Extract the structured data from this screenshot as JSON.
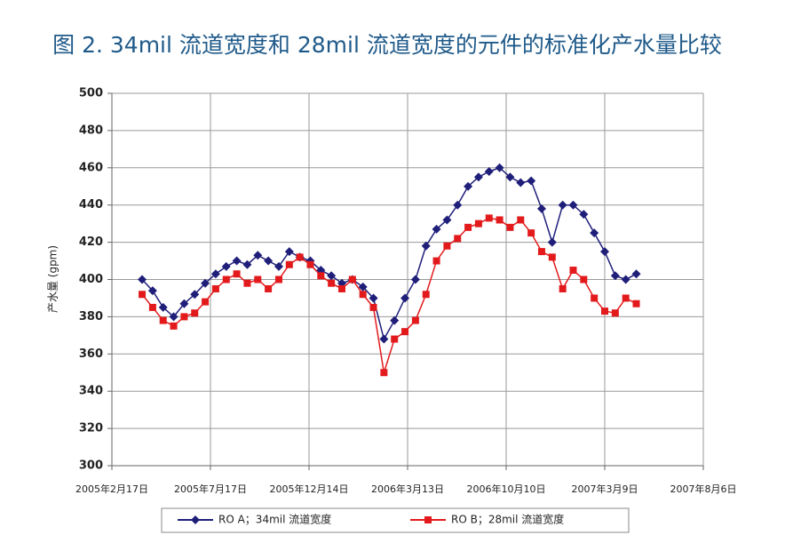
{
  "chart_data": {
    "type": "line",
    "title": "图 2. 34mil 流道宽度和 28mil 流道宽度的元件的标准化产水量比较",
    "y_label": "产水量 (gpm)",
    "x": [
      46,
      62,
      78,
      94,
      110,
      126,
      142,
      158,
      174,
      190,
      206,
      222,
      238,
      254,
      270,
      286,
      302,
      318,
      334,
      350,
      366,
      382,
      398,
      414,
      430,
      446,
      462,
      478,
      494,
      510,
      526,
      542,
      558,
      574,
      590,
      606,
      622,
      638,
      654,
      670,
      686,
      702,
      718,
      734,
      750,
      766,
      782,
      798
    ],
    "series": [
      {
        "name": "RO A；34mil 流道宽度",
        "color": "#1f1f7a",
        "marker": "diamond",
        "values": [
          400,
          394,
          385,
          380,
          387,
          392,
          398,
          403,
          407,
          410,
          408,
          413,
          410,
          407,
          415,
          412,
          410,
          405,
          402,
          398,
          400,
          396,
          390,
          368,
          378,
          390,
          400,
          418,
          427,
          432,
          440,
          450,
          455,
          458,
          460,
          455,
          452,
          453,
          438,
          420,
          440,
          440,
          435,
          425,
          415,
          402,
          400,
          403
        ]
      },
      {
        "name": "RO B；28mil 流道宽度",
        "color": "#e31a1c",
        "marker": "square",
        "values": [
          392,
          385,
          378,
          375,
          380,
          382,
          388,
          395,
          400,
          403,
          398,
          400,
          395,
          400,
          408,
          412,
          408,
          402,
          398,
          395,
          400,
          392,
          385,
          350,
          368,
          372,
          378,
          392,
          410,
          418,
          422,
          428,
          430,
          433,
          432,
          428,
          432,
          425,
          415,
          412,
          395,
          405,
          400,
          390,
          383,
          382,
          390,
          387
        ]
      }
    ],
    "xlim": [
      0,
      900
    ],
    "xticks": [
      {
        "value": 0,
        "label": "2005年2月17日"
      },
      {
        "value": 150,
        "label": "2005年7月17日"
      },
      {
        "value": 300,
        "label": "2005年12月14日"
      },
      {
        "value": 450,
        "label": "2006年3月13日"
      },
      {
        "value": 600,
        "label": "2006年10月10日"
      },
      {
        "value": 750,
        "label": "2007年3月9日"
      },
      {
        "value": 900,
        "label": "2007年8月6日"
      }
    ],
    "ylim": [
      300,
      500
    ],
    "yticks": [
      300,
      320,
      340,
      360,
      380,
      400,
      420,
      440,
      460,
      480,
      500
    ],
    "grid": true
  }
}
